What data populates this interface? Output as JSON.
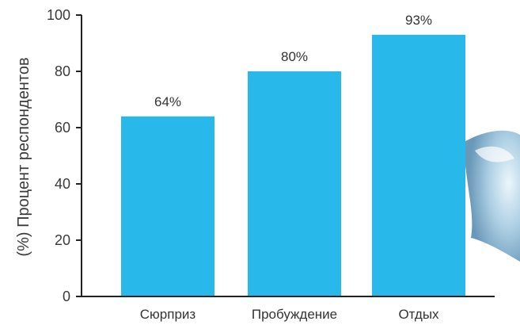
{
  "chart_data": {
    "type": "bar",
    "categories": [
      "Сюрприз",
      "Пробуждение",
      "Отдых"
    ],
    "values": [
      64,
      80,
      93
    ],
    "data_labels": [
      "64%",
      "80%",
      "93%"
    ],
    "ylabel": "(%) Процент респондентов",
    "xlabel": "",
    "ylim": [
      0,
      100
    ],
    "yticks": [
      0,
      20,
      40,
      60,
      80,
      100
    ],
    "grid": false,
    "bar_color": "#29b8ea",
    "axis_color": "#222222"
  }
}
